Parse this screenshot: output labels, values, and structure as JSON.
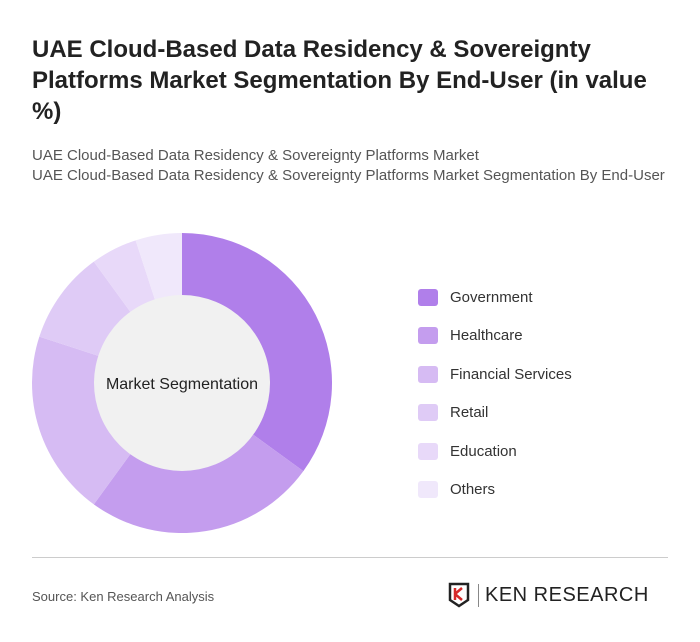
{
  "title": "UAE Cloud-Based Data Residency & Sovereignty Platforms Market Segmentation By End-User (in value %)",
  "subtitle1": "UAE Cloud-Based Data Residency & Sovereignty Platforms Market",
  "subtitle2": "UAE Cloud-Based Data Residency & Sovereignty Platforms Market Segmentation By End-User",
  "source": "Source: Ken Research Analysis",
  "logo_text": "KEN RESEARCH",
  "chart_data": {
    "type": "pie",
    "variant": "donut",
    "center_label": "Market Segmentation",
    "categories": [
      "Government",
      "Healthcare",
      "Financial Services",
      "Retail",
      "Education",
      "Others"
    ],
    "values": [
      35,
      25,
      20,
      10,
      5,
      5
    ],
    "colors": [
      "#b07fea",
      "#c49dee",
      "#d6bbf3",
      "#dfcbf6",
      "#e8d9f9",
      "#f0e8fb"
    ],
    "legend_position": "right"
  }
}
